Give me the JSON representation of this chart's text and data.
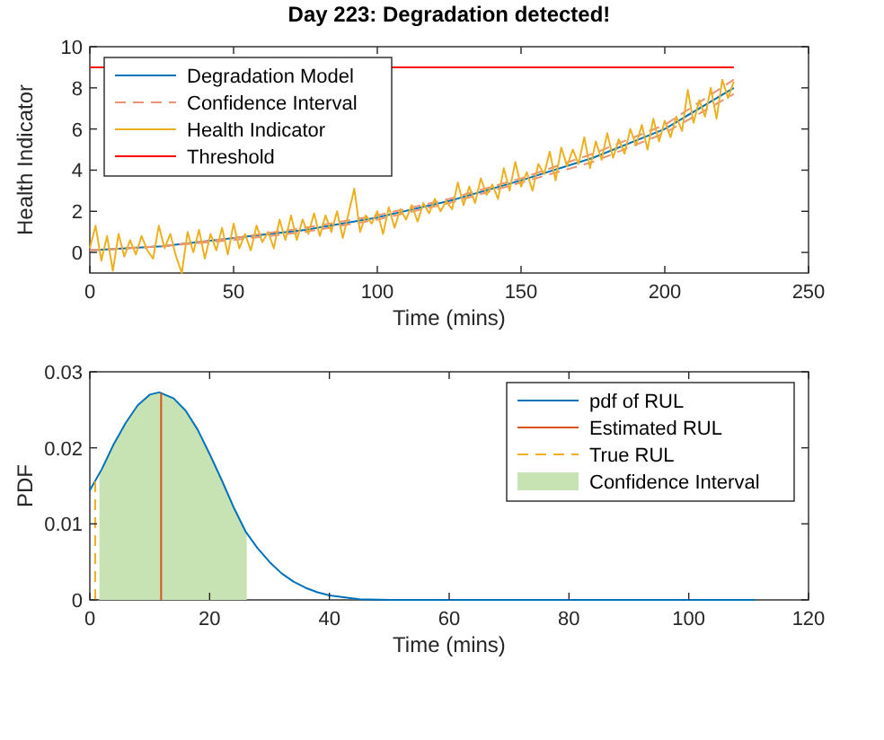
{
  "chart_data": [
    {
      "type": "line",
      "title": "Day 223: Degradation detected!",
      "xlabel": "Time (mins)",
      "ylabel": "Health Indicator",
      "xlim": [
        0,
        250
      ],
      "xticks": [
        0,
        50,
        100,
        150,
        200,
        250
      ],
      "ylim": [
        -1,
        10
      ],
      "yticks": [
        0,
        2,
        4,
        6,
        8,
        10
      ],
      "legend": "top left",
      "series": [
        {
          "name": "Degradation Model",
          "color": "#0072bd",
          "x": [
            0,
            25,
            50,
            75,
            100,
            125,
            150,
            175,
            200,
            224
          ],
          "values": [
            0.1,
            0.3,
            0.7,
            1.1,
            1.7,
            2.5,
            3.5,
            4.6,
            6.0,
            8.0
          ]
        },
        {
          "name": "Confidence Interval",
          "color": "#e8937a",
          "line_style": "dashed",
          "x": [
            0,
            25,
            50,
            75,
            100,
            125,
            150,
            175,
            200,
            224
          ],
          "values": [
            0.1,
            0.3,
            0.7,
            1.2,
            1.8,
            2.6,
            3.6,
            4.8,
            6.2,
            8.4
          ]
        },
        {
          "color": "#e8937a",
          "line_style": "dashed",
          "x": [
            0,
            25,
            50,
            75,
            100,
            125,
            150,
            175,
            200,
            224
          ],
          "values": [
            0.1,
            0.3,
            0.6,
            1.0,
            1.6,
            2.4,
            3.4,
            4.4,
            5.8,
            7.7
          ]
        },
        {
          "name": "Health Indicator",
          "color": "#edb120",
          "x": [
            0,
            2,
            4,
            6,
            8,
            10,
            12,
            14,
            16,
            18,
            20,
            22,
            24,
            26,
            28,
            30,
            32,
            34,
            36,
            38,
            40,
            42,
            44,
            46,
            48,
            50,
            52,
            54,
            56,
            58,
            60,
            62,
            64,
            66,
            68,
            70,
            72,
            74,
            76,
            78,
            80,
            82,
            84,
            86,
            88,
            90,
            92,
            94,
            96,
            98,
            100,
            102,
            104,
            106,
            108,
            110,
            112,
            114,
            116,
            118,
            120,
            122,
            124,
            126,
            128,
            130,
            132,
            134,
            136,
            138,
            140,
            142,
            144,
            146,
            148,
            150,
            152,
            154,
            156,
            158,
            160,
            162,
            164,
            166,
            168,
            170,
            172,
            174,
            176,
            178,
            180,
            182,
            184,
            186,
            188,
            190,
            192,
            194,
            196,
            198,
            200,
            202,
            204,
            206,
            208,
            210,
            212,
            214,
            216,
            218,
            220,
            222,
            224
          ],
          "values": [
            0.2,
            1.3,
            -0.4,
            0.8,
            -0.9,
            0.9,
            -0.2,
            0.6,
            -0.1,
            0.8,
            0.1,
            -0.3,
            1.3,
            0.2,
            0.9,
            -0.2,
            -1.0,
            1.0,
            0.0,
            1.1,
            -0.3,
            0.9,
            0.1,
            1.2,
            -0.1,
            1.4,
            0.2,
            0.9,
            0.1,
            1.3,
            0.5,
            1.0,
            0.2,
            1.6,
            0.6,
            1.8,
            0.6,
            1.6,
            0.9,
            1.9,
            0.8,
            1.8,
            1.0,
            2.0,
            0.7,
            1.9,
            3.1,
            1.0,
            1.8,
            1.4,
            2.0,
            0.9,
            2.2,
            1.2,
            2.1,
            1.6,
            2.3,
            1.5,
            2.4,
            1.9,
            2.6,
            2.0,
            2.5,
            2.1,
            3.4,
            2.3,
            3.2,
            2.4,
            3.6,
            2.8,
            3.3,
            2.6,
            4.1,
            3.0,
            4.4,
            3.2,
            3.9,
            3.0,
            4.3,
            3.8,
            4.9,
            3.5,
            5.1,
            4.2,
            5.0,
            4.3,
            5.6,
            4.1,
            5.4,
            4.5,
            5.8,
            4.6,
            5.5,
            4.8,
            6.0,
            5.2,
            6.2,
            5.0,
            6.5,
            5.4,
            6.4,
            5.6,
            6.6,
            5.9,
            7.9,
            6.3,
            7.4,
            6.6,
            8.0,
            6.5,
            8.4,
            7.5,
            8.3
          ]
        },
        {
          "name": "Threshold",
          "color": "#ff0000",
          "x": [
            0,
            224
          ],
          "values": [
            9,
            9
          ]
        }
      ]
    },
    {
      "type": "line",
      "xlabel": "Time (mins)",
      "ylabel": "PDF",
      "xlim": [
        0,
        120
      ],
      "xticks": [
        0,
        20,
        40,
        60,
        80,
        100,
        120
      ],
      "ylim": [
        0,
        0.03
      ],
      "yticks": [
        0,
        0.01,
        0.02,
        0.03
      ],
      "legend": "top right",
      "series": [
        {
          "name": "pdf of RUL",
          "color": "#0072bd",
          "x": [
            0,
            2,
            4,
            6,
            8,
            10,
            11.6,
            14,
            16,
            18,
            20,
            22,
            24,
            26,
            28,
            30,
            32,
            34,
            36,
            38,
            40,
            45,
            50,
            111
          ],
          "values": [
            0.0144,
            0.0172,
            0.0205,
            0.0233,
            0.0256,
            0.027,
            0.0273,
            0.0265,
            0.0249,
            0.0224,
            0.0192,
            0.0158,
            0.0122,
            0.009,
            0.0068,
            0.005,
            0.0035,
            0.0024,
            0.0016,
            0.001,
            0.0006,
            0.0001,
            0,
            0
          ]
        },
        {
          "name": "Estimated RUL",
          "color": "#d95319",
          "x": [
            11.9,
            11.9
          ],
          "values": [
            0,
            0.0272
          ]
        },
        {
          "name": "True RUL",
          "color": "#edb120",
          "line_style": "dashed",
          "x": [
            0.9,
            0.9
          ],
          "values": [
            0,
            0.0158
          ]
        },
        {
          "name": "Confidence Interval",
          "type": "area",
          "color": "#c8e3b3",
          "x": [
            1.6,
            2,
            4,
            6,
            8,
            10,
            11.6,
            14,
            16,
            18,
            20,
            22,
            24,
            26.2
          ],
          "values": [
            0.0166,
            0.0172,
            0.0205,
            0.0233,
            0.0256,
            0.027,
            0.0273,
            0.0265,
            0.0249,
            0.0224,
            0.0192,
            0.0158,
            0.0122,
            0.0087
          ]
        }
      ]
    }
  ]
}
